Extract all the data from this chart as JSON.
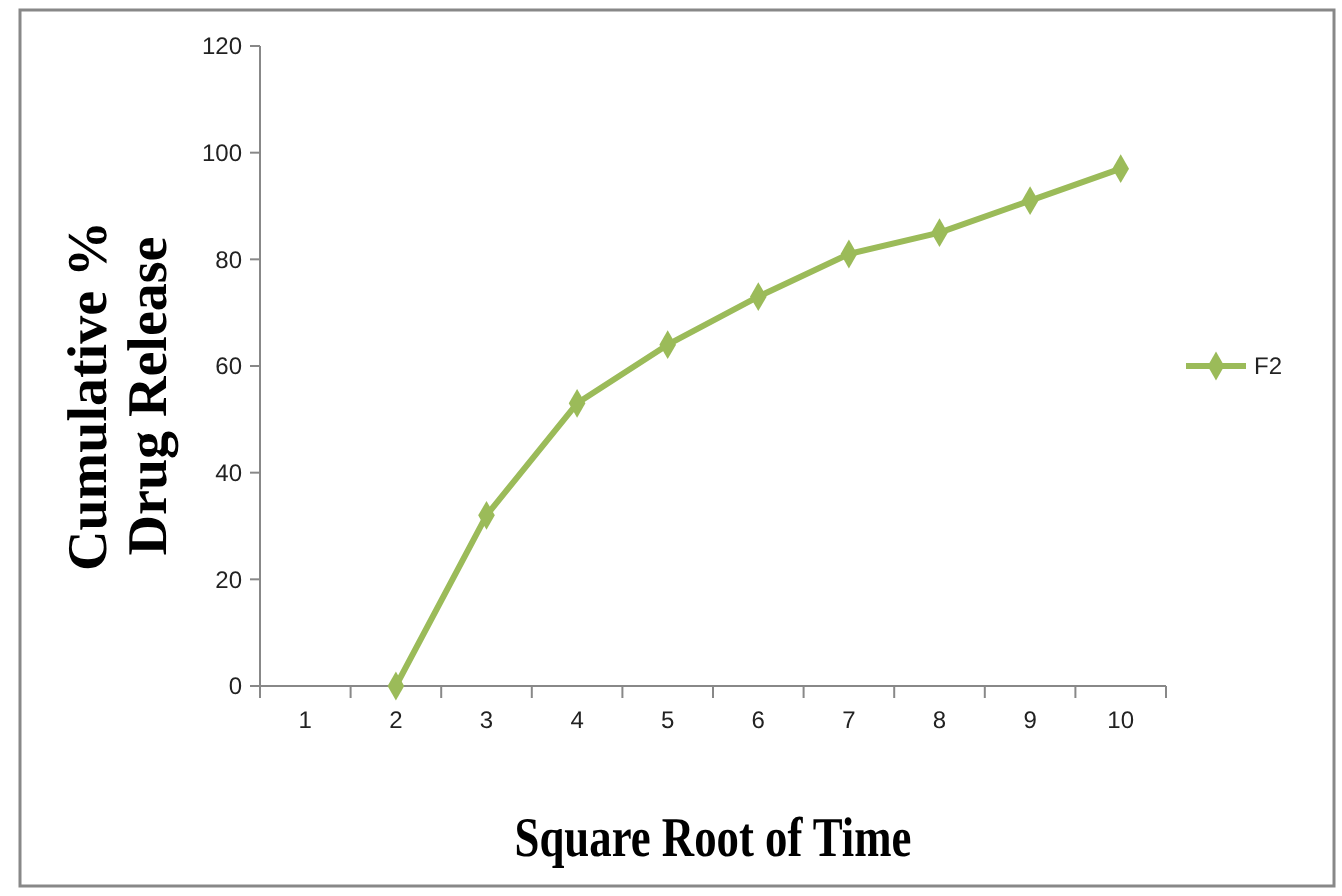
{
  "chart_data": {
    "type": "line",
    "xlabel": "Square Root of Time",
    "ylabel": "Cumulative %\nDrug Release",
    "categories": [
      "1",
      "2",
      "3",
      "4",
      "5",
      "6",
      "7",
      "8",
      "9",
      "10"
    ],
    "series": [
      {
        "name": "F2",
        "color": "#9bbb59",
        "values": [
          null,
          0,
          32,
          53,
          64,
          73,
          81,
          85,
          91,
          97
        ]
      }
    ],
    "ylim": [
      0,
      120
    ],
    "yticks": [
      0,
      20,
      40,
      60,
      80,
      100,
      120
    ],
    "marker": "diamond",
    "legend": "right"
  }
}
